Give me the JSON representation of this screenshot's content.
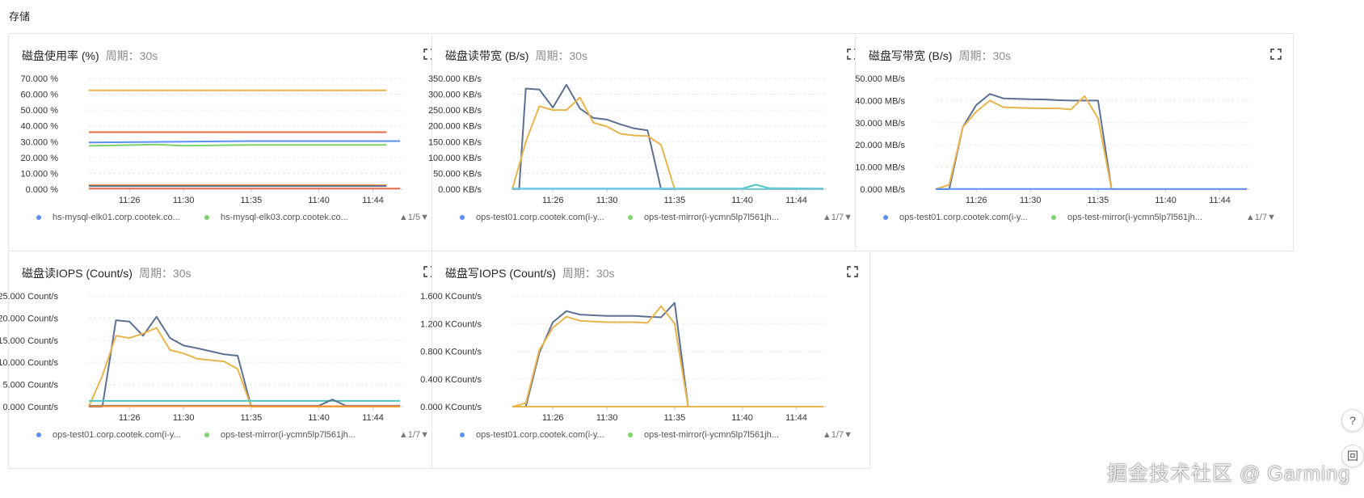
{
  "section_title": "存储",
  "watermark": "掘金技术社区 @ Garming",
  "side_buttons": [
    "?",
    "回"
  ],
  "colors": {
    "blue": "#5b8ff9",
    "green": "#7ed36b",
    "red": "#e8684a",
    "yellow": "#e8b54c",
    "slate": "#5d7092",
    "teal": "#4ec7c0",
    "orange": "#f6902f",
    "cyan": "#6dc8ec"
  },
  "panels": [
    {
      "title": "磁盘使用率 (%)",
      "period_label": "周期：",
      "period": "30s",
      "legend": [
        {
          "label": "hs-mysql-elk01.corp.cootek.co...",
          "color": "#5b8ff9"
        },
        {
          "label": "hs-mysql-elk03.corp.cootek.co...",
          "color": "#7ed36b"
        }
      ],
      "legend_page": "▲1/5▼"
    },
    {
      "title": "磁盘读带宽 (B/s)",
      "period_label": "周期：",
      "period": "30s",
      "legend": [
        {
          "label": "ops-test01.corp.cootek.com(i-y...",
          "color": "#5b8ff9"
        },
        {
          "label": "ops-test-mirror(i-ycmn5lp7l561jh...",
          "color": "#7ed36b"
        }
      ],
      "legend_page": "▲1/7▼"
    },
    {
      "title": "磁盘写带宽 (B/s)",
      "period_label": "周期：",
      "period": "30s",
      "legend": [
        {
          "label": "ops-test01.corp.cootek.com(i-y...",
          "color": "#5b8ff9"
        },
        {
          "label": "ops-test-mirror(i-ycmn5lp7l561jh...",
          "color": "#7ed36b"
        }
      ],
      "legend_page": "▲1/7▼"
    },
    {
      "title": "磁盘读IOPS (Count/s)",
      "period_label": "周期：",
      "period": "30s",
      "legend": [
        {
          "label": "ops-test01.corp.cootek.com(i-y...",
          "color": "#5b8ff9"
        },
        {
          "label": "ops-test-mirror(i-ycmn5lp7l561jh...",
          "color": "#7ed36b"
        }
      ],
      "legend_page": "▲1/7▼"
    },
    {
      "title": "磁盘写IOPS (Count/s)",
      "period_label": "周期：",
      "period": "30s",
      "legend": [
        {
          "label": "ops-test01.corp.cootek.com(i-y...",
          "color": "#5b8ff9"
        },
        {
          "label": "ops-test-mirror(i-ycmn5lp7l561jh...",
          "color": "#7ed36b"
        }
      ],
      "legend_page": "▲1/7▼"
    }
  ],
  "chart_data": [
    {
      "type": "line",
      "title": "磁盘使用率 (%)",
      "xlim": [
        "11:23",
        "11:46"
      ],
      "ylim": [
        0,
        70
      ],
      "ytick_values": [
        0,
        10,
        20,
        30,
        40,
        50,
        60,
        70
      ],
      "ytick_labels": [
        "0.000 %",
        "10.000 %",
        "20.000 %",
        "30.000 %",
        "40.000 %",
        "50.000 %",
        "60.000 %",
        "70.000 %"
      ],
      "xticks": [
        "11:26",
        "11:30",
        "11:35",
        "11:40",
        "11:44"
      ],
      "series": [
        {
          "color": "#e8b54c",
          "x": [
            "11:23",
            "11:45"
          ],
          "values": [
            62.5,
            62.5
          ]
        },
        {
          "color": "#e8684a",
          "x": [
            "11:23",
            "11:45"
          ],
          "values": [
            36.0,
            36.0
          ]
        },
        {
          "color": "#5b8ff9",
          "x": [
            "11:23",
            "11:30",
            "11:35",
            "11:46"
          ],
          "values": [
            29.5,
            30.0,
            30.4,
            30.4
          ]
        },
        {
          "color": "#7ed36b",
          "x": [
            "11:23",
            "11:28",
            "11:30",
            "11:35",
            "11:45"
          ],
          "values": [
            27.4,
            28.2,
            27.5,
            28.0,
            28.0
          ]
        },
        {
          "color": "#f6902f",
          "x": [
            "11:23",
            "11:45"
          ],
          "values": [
            2.5,
            2.5
          ]
        },
        {
          "color": "#5d7092",
          "x": [
            "11:23",
            "11:45"
          ],
          "values": [
            2.0,
            2.0
          ]
        },
        {
          "color": "#e8684a",
          "x": [
            "11:23",
            "11:46"
          ],
          "values": [
            0.4,
            0.4
          ]
        }
      ]
    },
    {
      "type": "line",
      "title": "磁盘读带宽 (B/s)",
      "xlim": [
        "11:23",
        "11:46"
      ],
      "ylim": [
        0,
        350
      ],
      "ytick_values": [
        0,
        50,
        100,
        150,
        200,
        250,
        300,
        350
      ],
      "ytick_labels": [
        "0.000 KB/s",
        "50.000 KB/s",
        "100.000 KB/s",
        "150.000 KB/s",
        "200.000 KB/s",
        "250.000 KB/s",
        "300.000 KB/s",
        "350.000 KB/s"
      ],
      "xticks": [
        "11:26",
        "11:30",
        "11:35",
        "11:40",
        "11:44"
      ],
      "series": [
        {
          "color": "#5d7092",
          "x": [
            "11:23",
            "11:23.5",
            "11:24",
            "11:25",
            "11:26",
            "11:27",
            "11:28",
            "11:29",
            "11:30",
            "11:31",
            "11:32",
            "11:33",
            "11:34",
            "11:35",
            "11:36",
            "11:46"
          ],
          "values": [
            0,
            0,
            318,
            315,
            258,
            330,
            255,
            225,
            220,
            205,
            192,
            186,
            0,
            0,
            0,
            0
          ]
        },
        {
          "color": "#e8b54c",
          "x": [
            "11:23",
            "11:24",
            "11:25",
            "11:26",
            "11:27",
            "11:28",
            "11:29",
            "11:30",
            "11:31",
            "11:32",
            "11:33",
            "11:34",
            "11:35",
            "11:36",
            "11:46"
          ],
          "values": [
            0,
            150,
            262,
            250,
            250,
            290,
            210,
            198,
            175,
            170,
            168,
            140,
            0,
            0,
            0
          ]
        },
        {
          "color": "#4ec7c0",
          "x": [
            "11:23",
            "11:40",
            "11:41",
            "11:42",
            "11:46"
          ],
          "values": [
            2,
            2,
            14,
            3,
            2
          ]
        },
        {
          "color": "#6dc8ec",
          "x": [
            "11:23",
            "11:46"
          ],
          "values": [
            0.5,
            0.5
          ]
        }
      ]
    },
    {
      "type": "line",
      "title": "磁盘写带宽 (B/s)",
      "xlim": [
        "11:23",
        "11:46"
      ],
      "ylim": [
        0,
        50
      ],
      "ytick_values": [
        0,
        10,
        20,
        30,
        40,
        50
      ],
      "ytick_labels": [
        "0.000 MB/s",
        "10.000 MB/s",
        "20.000 MB/s",
        "30.000 MB/s",
        "40.000 MB/s",
        "50.000 MB/s"
      ],
      "xticks": [
        "11:26",
        "11:30",
        "11:35",
        "11:40",
        "11:44"
      ],
      "series": [
        {
          "color": "#5d7092",
          "x": [
            "11:23",
            "11:24",
            "11:25",
            "11:26",
            "11:27",
            "11:28",
            "11:29",
            "11:30",
            "11:31",
            "11:32",
            "11:33",
            "11:34",
            "11:35",
            "11:36",
            "11:46"
          ],
          "values": [
            0,
            0,
            28,
            38,
            43,
            41,
            40.8,
            40.6,
            40.5,
            40.2,
            40,
            40,
            40,
            0,
            0
          ]
        },
        {
          "color": "#e8b54c",
          "x": [
            "11:23",
            "11:24",
            "11:25",
            "11:26",
            "11:27",
            "11:28",
            "11:29",
            "11:30",
            "11:31",
            "11:32",
            "11:33",
            "11:34",
            "11:35",
            "11:36",
            "11:37",
            "11:46"
          ],
          "values": [
            0,
            2,
            28,
            35,
            40,
            37,
            36.8,
            36.6,
            36.5,
            36.5,
            36,
            42,
            32,
            0,
            0,
            0
          ]
        },
        {
          "color": "#5b8ff9",
          "x": [
            "11:23",
            "11:46"
          ],
          "values": [
            0.1,
            0.1
          ]
        }
      ]
    },
    {
      "type": "line",
      "title": "磁盘读IOPS (Count/s)",
      "xlim": [
        "11:23",
        "11:46"
      ],
      "ylim": [
        0,
        25
      ],
      "ytick_values": [
        0,
        5,
        10,
        15,
        20,
        25
      ],
      "ytick_labels": [
        "0.000 Count/s",
        "5.000 Count/s",
        "10.000 Count/s",
        "15.000 Count/s",
        "20.000 Count/s",
        "25.000 Count/s"
      ],
      "xticks": [
        "11:26",
        "11:30",
        "11:35",
        "11:40",
        "11:44"
      ],
      "series": [
        {
          "color": "#5d7092",
          "x": [
            "11:23",
            "11:24",
            "11:25",
            "11:26",
            "11:27",
            "11:28",
            "11:29",
            "11:30",
            "11:31",
            "11:32",
            "11:33",
            "11:34",
            "11:35",
            "11:36",
            "11:46"
          ],
          "values": [
            0,
            0,
            19.5,
            19.2,
            16,
            20.3,
            15.5,
            13.8,
            13.2,
            12.5,
            11.8,
            11.5,
            0,
            0,
            0
          ]
        },
        {
          "color": "#e8b54c",
          "x": [
            "11:23",
            "11:24",
            "11:25",
            "11:26",
            "11:27",
            "11:28",
            "11:29",
            "11:30",
            "11:31",
            "11:32",
            "11:33",
            "11:34",
            "11:35",
            "11:46"
          ],
          "values": [
            0,
            7,
            16,
            15.5,
            16.5,
            17.8,
            12.8,
            12,
            10.8,
            10.5,
            10.2,
            8.5,
            0,
            0
          ]
        },
        {
          "color": "#4ec7c0",
          "x": [
            "11:23",
            "11:46"
          ],
          "values": [
            1.3,
            1.3
          ]
        },
        {
          "color": "#5d7092",
          "x": [
            "11:23",
            "11:40",
            "11:41",
            "11:42",
            "11:46"
          ],
          "values": [
            0.2,
            0.2,
            1.6,
            0.2,
            0.2
          ]
        },
        {
          "color": "#f6902f",
          "x": [
            "11:23",
            "11:46"
          ],
          "values": [
            0.1,
            0.1
          ]
        }
      ]
    },
    {
      "type": "line",
      "title": "磁盘写IOPS (Count/s)",
      "xlim": [
        "11:23",
        "11:46"
      ],
      "ylim": [
        0,
        1.6
      ],
      "ytick_values": [
        0,
        0.4,
        0.8,
        1.2,
        1.6
      ],
      "ytick_labels": [
        "0.000 KCount/s",
        "0.400 KCount/s",
        "0.800 KCount/s",
        "1.200 KCount/s",
        "1.600 KCount/s"
      ],
      "xticks": [
        "11:26",
        "11:30",
        "11:35",
        "11:40",
        "11:44"
      ],
      "series": [
        {
          "color": "#5d7092",
          "x": [
            "11:23",
            "11:24",
            "11:25",
            "11:26",
            "11:27",
            "11:28",
            "11:29",
            "11:30",
            "11:31",
            "11:32",
            "11:33",
            "11:34",
            "11:35",
            "11:36",
            "11:46"
          ],
          "values": [
            0,
            0,
            0.78,
            1.22,
            1.38,
            1.33,
            1.32,
            1.31,
            1.31,
            1.31,
            1.3,
            1.29,
            1.5,
            0,
            0
          ]
        },
        {
          "color": "#e8b54c",
          "x": [
            "11:23",
            "11:24",
            "11:25",
            "11:26",
            "11:27",
            "11:28",
            "11:29",
            "11:30",
            "11:31",
            "11:32",
            "11:33",
            "11:34",
            "11:35",
            "11:36",
            "11:46"
          ],
          "values": [
            0,
            0.05,
            0.82,
            1.14,
            1.3,
            1.24,
            1.23,
            1.22,
            1.22,
            1.22,
            1.21,
            1.45,
            1.2,
            0,
            0
          ]
        },
        {
          "color": "#e8b54c",
          "x": [
            "11:23",
            "11:46"
          ],
          "values": [
            0,
            0
          ]
        }
      ]
    }
  ]
}
